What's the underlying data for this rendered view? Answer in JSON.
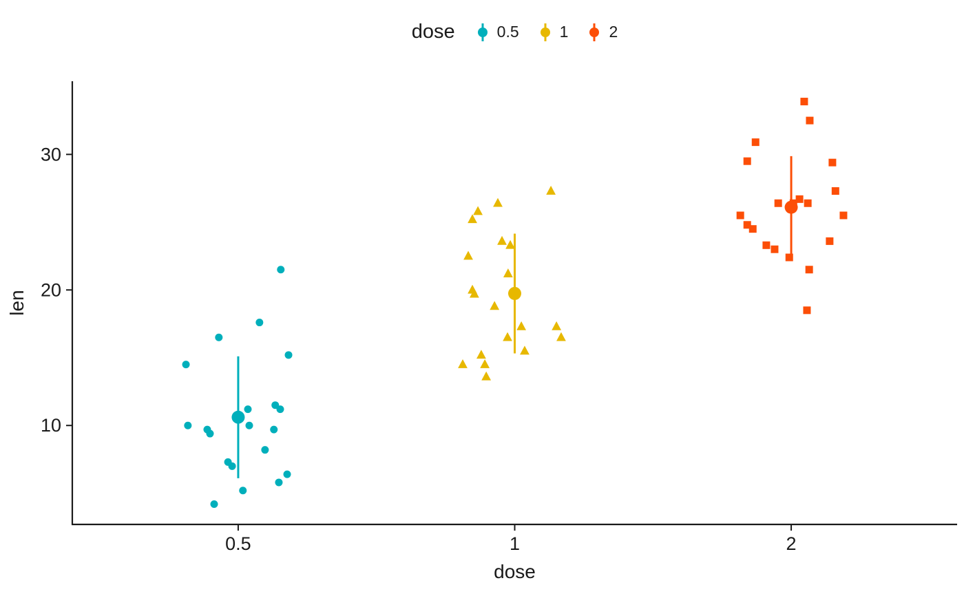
{
  "legend": {
    "title": "dose",
    "items": [
      {
        "label": "0.5",
        "color": "#00AFBB"
      },
      {
        "label": "1",
        "color": "#E7B800"
      },
      {
        "label": "2",
        "color": "#FC4E07"
      }
    ]
  },
  "chart_data": {
    "type": "scatter",
    "subtype": "jitter-with-mean-errorbar",
    "title": "",
    "xlabel": "dose",
    "ylabel": "len",
    "x_categories": [
      "0.5",
      "1",
      "2"
    ],
    "y_ticks": [
      10,
      20,
      30
    ],
    "y_domain": [
      2.7,
      35.4
    ],
    "grid": false,
    "legend_position": "top",
    "point_format": [
      "x_jitter_offset_in_dose_units",
      "len"
    ],
    "groups": [
      {
        "dose": "0.5",
        "color": "#00AFBB",
        "shape": "circle",
        "mean": 10.61,
        "errorbar": [
          6.11,
          15.1
        ],
        "points": [
          [
            -0.087,
            4.2
          ],
          [
            0.017,
            5.2
          ],
          [
            0.147,
            5.8
          ],
          [
            0.177,
            6.4
          ],
          [
            -0.022,
            7.0
          ],
          [
            -0.037,
            7.3
          ],
          [
            0.097,
            8.2
          ],
          [
            -0.102,
            9.4
          ],
          [
            -0.112,
            9.7
          ],
          [
            0.129,
            9.7
          ],
          [
            -0.182,
            10.0
          ],
          [
            0.04,
            10.0
          ],
          [
            0.035,
            11.2
          ],
          [
            0.152,
            11.2
          ],
          [
            0.134,
            11.5
          ],
          [
            -0.189,
            14.5
          ],
          [
            0.182,
            15.2
          ],
          [
            -0.07,
            16.5
          ],
          [
            0.077,
            17.6
          ],
          [
            0.154,
            21.5
          ]
        ]
      },
      {
        "dose": "1",
        "color": "#E7B800",
        "shape": "triangle",
        "mean": 19.74,
        "errorbar": [
          15.32,
          24.15
        ],
        "points": [
          [
            -0.103,
            13.6
          ],
          [
            -0.188,
            14.5
          ],
          [
            -0.108,
            14.5
          ],
          [
            -0.121,
            15.2
          ],
          [
            0.036,
            15.5
          ],
          [
            0.168,
            16.5
          ],
          [
            -0.026,
            16.5
          ],
          [
            0.024,
            17.3
          ],
          [
            0.151,
            17.3
          ],
          [
            -0.073,
            18.8
          ],
          [
            -0.146,
            19.7
          ],
          [
            -0.153,
            20.0
          ],
          [
            -0.024,
            21.2
          ],
          [
            -0.168,
            22.5
          ],
          [
            -0.016,
            23.3
          ],
          [
            -0.046,
            23.6
          ],
          [
            -0.153,
            25.2
          ],
          [
            -0.133,
            25.8
          ],
          [
            -0.061,
            26.4
          ],
          [
            0.131,
            27.3
          ]
        ]
      },
      {
        "dose": "2",
        "color": "#FC4E07",
        "shape": "square",
        "mean": 26.1,
        "errorbar": [
          22.33,
          29.87
        ],
        "points": [
          [
            0.057,
            18.5
          ],
          [
            0.065,
            21.5
          ],
          [
            -0.007,
            22.4
          ],
          [
            -0.06,
            23.0
          ],
          [
            -0.09,
            23.3
          ],
          [
            0.139,
            23.6
          ],
          [
            -0.139,
            24.5
          ],
          [
            -0.159,
            24.8
          ],
          [
            -0.184,
            25.5
          ],
          [
            0.189,
            25.5
          ],
          [
            -0.047,
            26.4
          ],
          [
            0.008,
            26.4
          ],
          [
            0.06,
            26.4
          ],
          [
            0.03,
            26.7
          ],
          [
            0.16,
            27.3
          ],
          [
            0.149,
            29.4
          ],
          [
            -0.159,
            29.5
          ],
          [
            -0.129,
            30.9
          ],
          [
            0.067,
            32.5
          ],
          [
            0.047,
            33.9
          ]
        ]
      }
    ]
  }
}
